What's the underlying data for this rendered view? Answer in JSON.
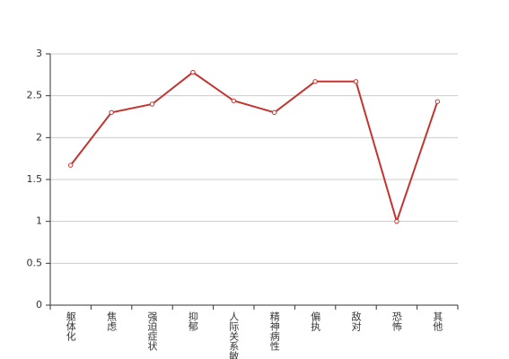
{
  "chart_data": {
    "type": "line",
    "categories": [
      "躯体化",
      "焦虑",
      "强迫症状",
      "抑郁",
      "人际关系敏感",
      "精神病性",
      "偏执",
      "敌对",
      "恐怖",
      "其他"
    ],
    "series": [
      {
        "color": "#c23531",
        "values": [
          1.67,
          2.3,
          2.4,
          2.78,
          2.44,
          2.3,
          2.67,
          2.67,
          1.0,
          2.43
        ]
      }
    ],
    "ylim": [
      0,
      3
    ],
    "yticks": [
      0,
      0.5,
      1,
      1.5,
      2,
      2.5,
      3
    ],
    "grid": true
  }
}
